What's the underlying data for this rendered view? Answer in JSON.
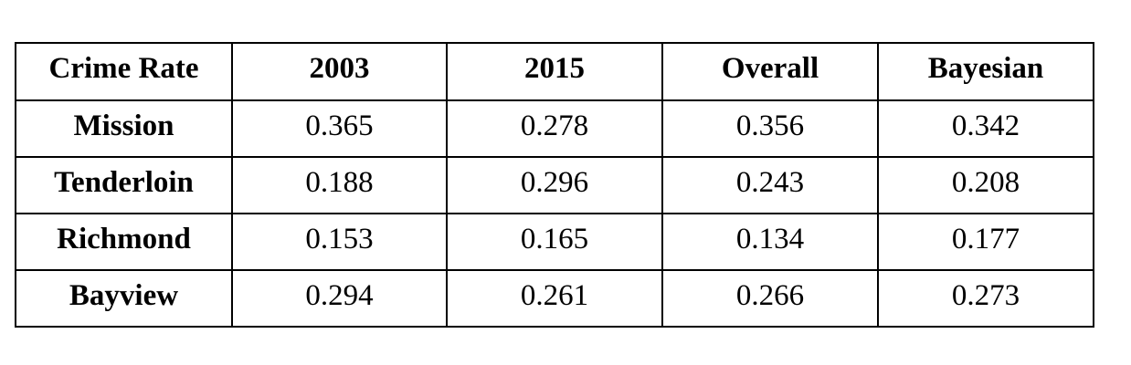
{
  "table": {
    "columns": [
      "Crime Rate",
      "2003",
      "2015",
      "Overall",
      "Bayesian"
    ],
    "rows": [
      {
        "label": "Mission",
        "values": [
          "0.365",
          "0.278",
          "0.356",
          "0.342"
        ]
      },
      {
        "label": "Tenderloin",
        "values": [
          "0.188",
          "0.296",
          "0.243",
          "0.208"
        ]
      },
      {
        "label": "Richmond",
        "values": [
          "0.153",
          "0.165",
          "0.134",
          "0.177"
        ]
      },
      {
        "label": "Bayview",
        "values": [
          "0.294",
          "0.261",
          "0.266",
          "0.273"
        ]
      }
    ]
  }
}
